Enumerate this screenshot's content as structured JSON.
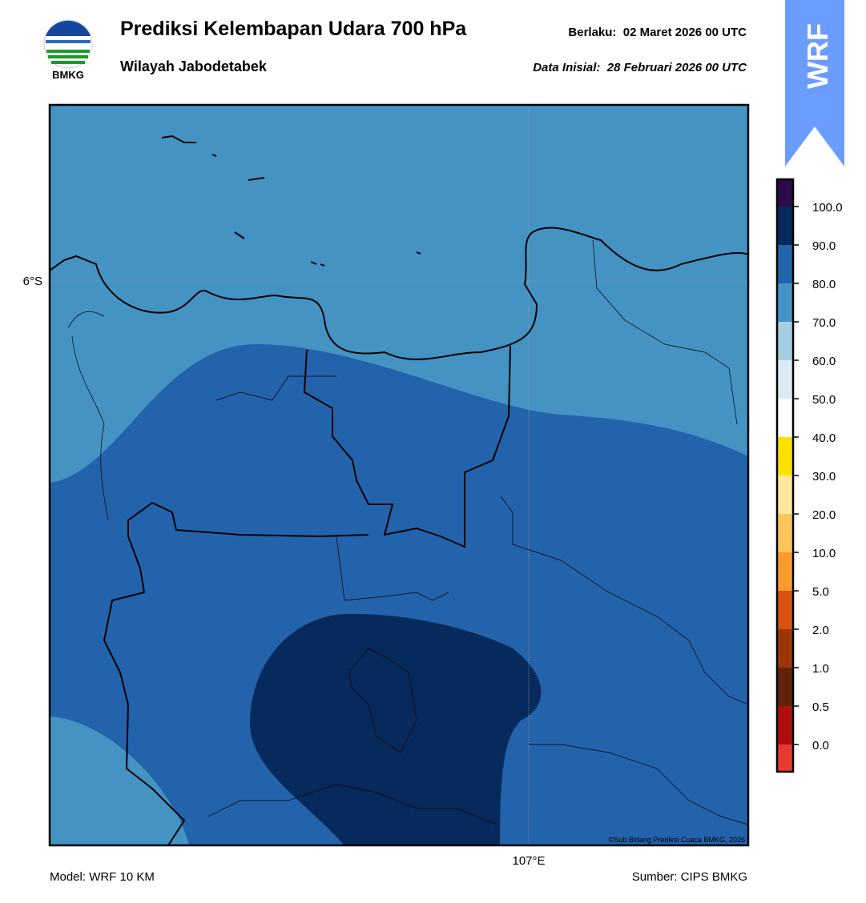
{
  "header": {
    "logo_text": "BMKG",
    "title": "Prediksi Kelembapan Udara 700 hPa",
    "subtitle": "Wilayah Jabodetabek",
    "valid": "Berlaku:  02 Maret 2026 00 UTC",
    "initial": "Data Inisial:  28 Februari 2026 00 UTC",
    "badge": "WRF"
  },
  "map": {
    "lat_label": "6°S",
    "lon_label": "107°E",
    "credit": "©Sub Bidang Prediksi Cuaca BMKG, 2026"
  },
  "colorbar": {
    "colors": [
      "#2c0b4a",
      "#072a5c",
      "#2363ab",
      "#4493c3",
      "#a4cfe2",
      "#dceaf4",
      "#ffffff",
      "#ffe100",
      "#ffe9a0",
      "#ffc55a",
      "#fa9a2a",
      "#d9520e",
      "#9b3707",
      "#5e2309",
      "#b00e0e",
      "#e83a30"
    ],
    "ticks": [
      {
        "value": 100,
        "label": "100.0"
      },
      {
        "value": 90,
        "label": "90.0"
      },
      {
        "value": 80,
        "label": "80.0"
      },
      {
        "value": 70,
        "label": "70.0"
      },
      {
        "value": 60,
        "label": "60.0"
      },
      {
        "value": 50,
        "label": "50.0"
      },
      {
        "value": 40,
        "label": "40.0"
      },
      {
        "value": 30,
        "label": "30.0"
      },
      {
        "value": 20,
        "label": "20.0"
      },
      {
        "value": 10,
        "label": "10.0"
      },
      {
        "value": 5,
        "label": "5.0"
      },
      {
        "value": 2,
        "label": "2.0"
      },
      {
        "value": 1,
        "label": "1.0"
      },
      {
        "value": 0.5,
        "label": "0.5"
      },
      {
        "value": 0,
        "label": "0.0"
      }
    ]
  },
  "footer": {
    "model": "Model: WRF 10 KM",
    "source": "Sumber: CIPS BMKG"
  }
}
